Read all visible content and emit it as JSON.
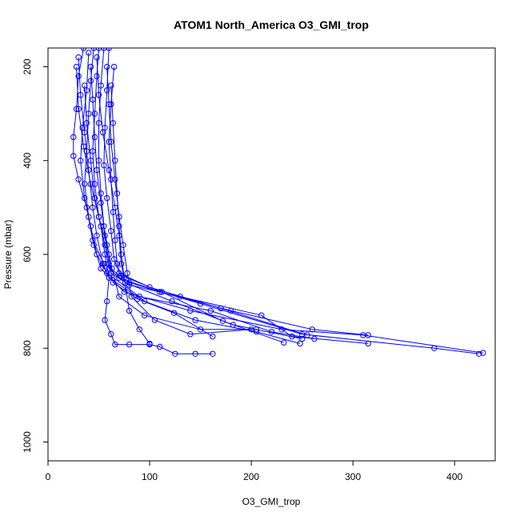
{
  "chart_data": {
    "type": "scatter",
    "title": "ATOM1 North_America O3_GMI_trop",
    "xlabel": "O3_GMI_trop",
    "ylabel": "Pressure (mbar)",
    "xlim": [
      0,
      440
    ],
    "ylim": [
      1040,
      160
    ],
    "y_reversed": true,
    "x_ticks": [
      0,
      100,
      200,
      300,
      400
    ],
    "y_ticks": [
      200,
      400,
      600,
      800,
      1000
    ],
    "marker": "open-circle",
    "grid": false,
    "legend": "none",
    "color": "#0000ff",
    "series": [
      {
        "points": [
          [
            45,
            160
          ],
          [
            42,
            230
          ],
          [
            40,
            300
          ],
          [
            38,
            380
          ],
          [
            36,
            450
          ],
          [
            40,
            520
          ],
          [
            45,
            580
          ],
          [
            52,
            630
          ],
          [
            75,
            680
          ],
          [
            140,
            720
          ],
          [
            230,
            760
          ],
          [
            310,
            772
          ],
          [
            428,
            810
          ]
        ]
      },
      {
        "points": [
          [
            35,
            160
          ],
          [
            30,
            220
          ],
          [
            28,
            290
          ],
          [
            25,
            350
          ],
          [
            25,
            390
          ],
          [
            30,
            440
          ],
          [
            38,
            500
          ],
          [
            44,
            570
          ],
          [
            55,
            620
          ],
          [
            80,
            660
          ],
          [
            150,
            705
          ],
          [
            250,
            770
          ],
          [
            380,
            800
          ],
          [
            424,
            812
          ]
        ]
      },
      {
        "points": [
          [
            50,
            160
          ],
          [
            48,
            220
          ],
          [
            46,
            300
          ],
          [
            44,
            380
          ],
          [
            46,
            450
          ],
          [
            50,
            520
          ],
          [
            56,
            580
          ],
          [
            60,
            630
          ],
          [
            70,
            650
          ],
          [
            110,
            680
          ],
          [
            180,
            720
          ],
          [
            260,
            760
          ],
          [
            315,
            772
          ]
        ]
      },
      {
        "points": [
          [
            55,
            160
          ],
          [
            52,
            240
          ],
          [
            50,
            320
          ],
          [
            50,
            400
          ],
          [
            52,
            470
          ],
          [
            55,
            540
          ],
          [
            60,
            600
          ],
          [
            62,
            640
          ],
          [
            80,
            665
          ],
          [
            130,
            690
          ],
          [
            210,
            730
          ],
          [
            240,
            775
          ],
          [
            315,
            790
          ]
        ]
      },
      {
        "points": [
          [
            40,
            170
          ],
          [
            38,
            250
          ],
          [
            34,
            330
          ],
          [
            32,
            400
          ],
          [
            36,
            480
          ],
          [
            42,
            540
          ],
          [
            48,
            600
          ],
          [
            58,
            640
          ],
          [
            90,
            690
          ],
          [
            160,
            720
          ],
          [
            220,
            765
          ],
          [
            262,
            780
          ]
        ]
      },
      {
        "points": [
          [
            60,
            160
          ],
          [
            58,
            250
          ],
          [
            56,
            330
          ],
          [
            55,
            410
          ],
          [
            58,
            480
          ],
          [
            62,
            550
          ],
          [
            65,
            610
          ],
          [
            70,
            640
          ],
          [
            100,
            670
          ],
          [
            170,
            715
          ],
          [
            255,
            772
          ]
        ]
      },
      {
        "points": [
          [
            30,
            180
          ],
          [
            32,
            260
          ],
          [
            36,
            340
          ],
          [
            40,
            420
          ],
          [
            44,
            500
          ],
          [
            48,
            560
          ],
          [
            54,
            620
          ],
          [
            60,
            650
          ],
          [
            95,
            700
          ],
          [
            145,
            740
          ],
          [
            205,
            765
          ],
          [
            248,
            790
          ]
        ]
      },
      {
        "points": [
          [
            65,
            200
          ],
          [
            62,
            280
          ],
          [
            60,
            360
          ],
          [
            62,
            440
          ],
          [
            64,
            510
          ],
          [
            66,
            570
          ],
          [
            68,
            620
          ],
          [
            72,
            645
          ],
          [
            112,
            680
          ],
          [
            172,
            742
          ],
          [
            232,
            788
          ]
        ]
      },
      {
        "points": [
          [
            28,
            200
          ],
          [
            30,
            290
          ],
          [
            35,
            370
          ],
          [
            42,
            450
          ],
          [
            50,
            520
          ],
          [
            58,
            580
          ],
          [
            63,
            630
          ],
          [
            70,
            690
          ],
          [
            95,
            730
          ],
          [
            150,
            760
          ],
          [
            205,
            760
          ]
        ]
      },
      {
        "points": [
          [
            48,
            180
          ],
          [
            50,
            260
          ],
          [
            54,
            340
          ],
          [
            60,
            420
          ],
          [
            66,
            500
          ],
          [
            70,
            560
          ],
          [
            72,
            620
          ],
          [
            76,
            660
          ],
          [
            122,
            700
          ],
          [
            182,
            750
          ],
          [
            250,
            780
          ]
        ]
      },
      {
        "points": [
          [
            58,
            200
          ],
          [
            60,
            280
          ],
          [
            62,
            360
          ],
          [
            66,
            440
          ],
          [
            70,
            520
          ],
          [
            74,
            580
          ],
          [
            78,
            640
          ],
          [
            82,
            690
          ],
          [
            105,
            740
          ],
          [
            140,
            770
          ],
          [
            200,
            760
          ]
        ]
      },
      {
        "points": [
          [
            42,
            200
          ],
          [
            44,
            270
          ],
          [
            46,
            350
          ],
          [
            48,
            420
          ],
          [
            52,
            490
          ],
          [
            56,
            560
          ],
          [
            60,
            620
          ],
          [
            64,
            660
          ],
          [
            88,
            695
          ],
          [
            124,
            725
          ],
          [
            162,
            775
          ]
        ]
      },
      {
        "points": [
          [
            62,
            240
          ],
          [
            64,
            320
          ],
          [
            66,
            400
          ],
          [
            68,
            470
          ],
          [
            70,
            540
          ],
          [
            72,
            600
          ],
          [
            75,
            650
          ],
          [
            80,
            720
          ],
          [
            90,
            760
          ],
          [
            100,
            790
          ]
        ]
      },
      {
        "points": [
          [
            36,
            240
          ],
          [
            38,
            320
          ],
          [
            42,
            400
          ],
          [
            46,
            480
          ],
          [
            52,
            540
          ],
          [
            56,
            600
          ],
          [
            60,
            650
          ],
          [
            58,
            700
          ],
          [
            56,
            740
          ],
          [
            62,
            770
          ],
          [
            66,
            792
          ],
          [
            80,
            792
          ],
          [
            100,
            792
          ],
          [
            110,
            797
          ],
          [
            125,
            812
          ],
          [
            145,
            812
          ],
          [
            162,
            812
          ]
        ]
      }
    ]
  }
}
